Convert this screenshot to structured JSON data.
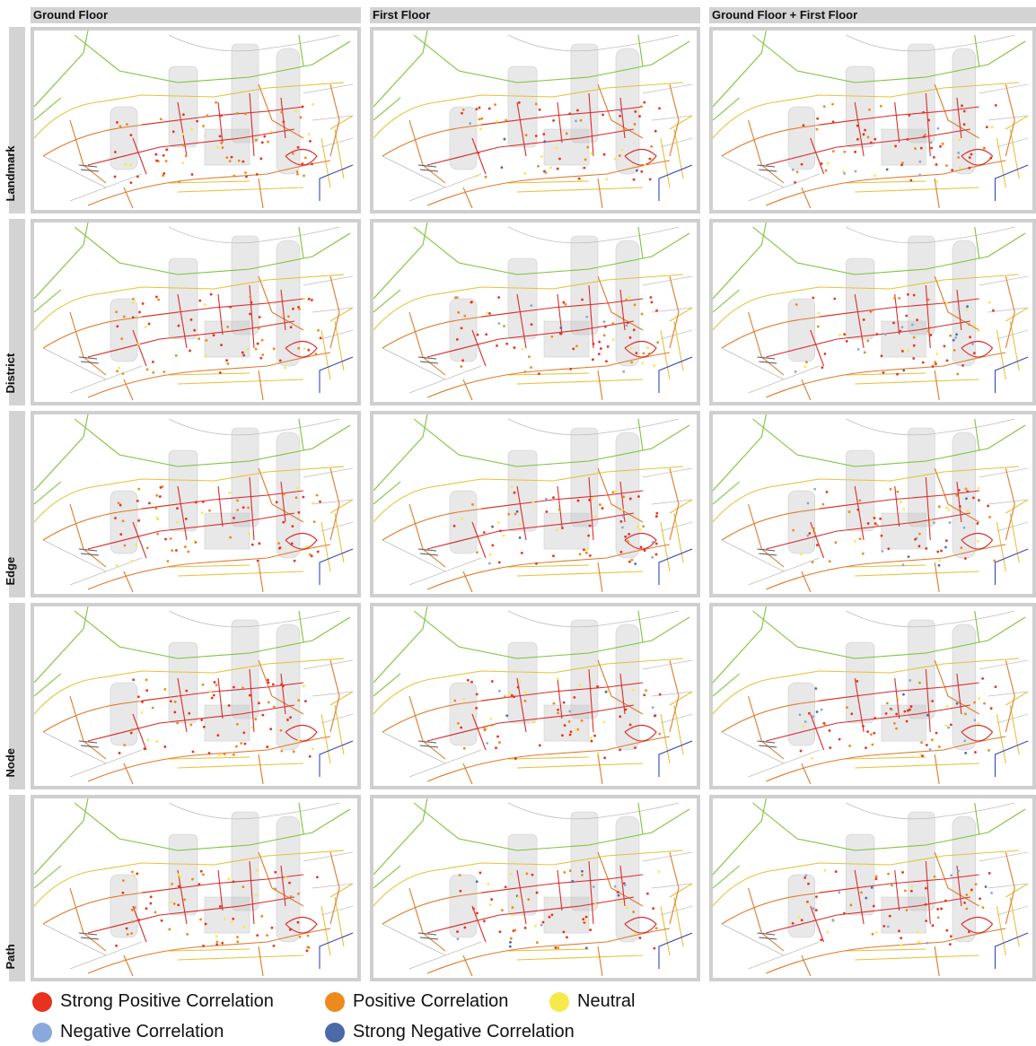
{
  "columns": [
    "Ground Floor",
    "First Floor",
    "Ground Floor + First Floor"
  ],
  "rows": [
    "Landmark",
    "District",
    "Edge",
    "Node",
    "Path"
  ],
  "legend": {
    "items": [
      {
        "label": "Strong Positive Correlation",
        "color": "#e8321e"
      },
      {
        "label": "Positive Correlation",
        "color": "#ec8a1c"
      },
      {
        "label": "Neutral",
        "color": "#f5ea4a"
      },
      {
        "label": "Negative Correlation",
        "color": "#89a8dc"
      },
      {
        "label": "Strong Negative Correlation",
        "color": "#4a6aa8"
      }
    ]
  }
}
